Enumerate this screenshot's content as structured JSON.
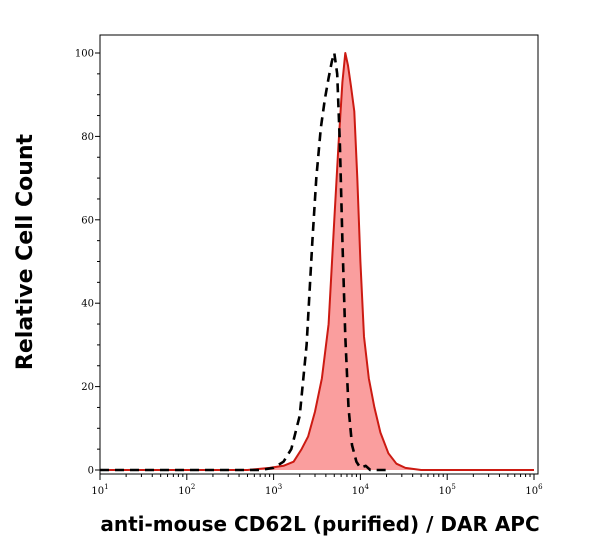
{
  "chart_data": {
    "type": "area",
    "title": "",
    "xlabel": "anti-mouse CD62L (purified) / DAR APC",
    "ylabel": "Relative Cell Count",
    "x_scale": "log",
    "xlim": [
      10,
      1000000
    ],
    "ylim": [
      0,
      100
    ],
    "x_ticks": [
      {
        "base": "10",
        "exp": "1",
        "value": 10
      },
      {
        "base": "10",
        "exp": "2",
        "value": 100
      },
      {
        "base": "10",
        "exp": "3",
        "value": 1000
      },
      {
        "base": "10",
        "exp": "4",
        "value": 10000
      },
      {
        "base": "10",
        "exp": "5",
        "value": 100000
      },
      {
        "base": "10",
        "exp": "6",
        "value": 1000000
      }
    ],
    "y_ticks": [
      "0",
      "20",
      "40",
      "60",
      "80",
      "100"
    ],
    "grid": false,
    "series": [
      {
        "style": "filled",
        "color": "#cc1a12",
        "fill": "#fa9e9e",
        "x": [
          10,
          500,
          900,
          1300,
          1700,
          2100,
          2500,
          3000,
          3600,
          4300,
          5000,
          5600,
          6200,
          6700,
          7200,
          7800,
          8500,
          9200,
          10000,
          11000,
          12500,
          14500,
          17000,
          21000,
          26000,
          33000,
          50000,
          1000000
        ],
        "y": [
          0,
          0,
          0.5,
          1,
          2,
          5,
          8,
          14,
          22,
          35,
          60,
          78,
          93,
          100,
          97,
          92,
          86,
          70,
          50,
          32,
          22,
          15,
          9,
          4,
          1.5,
          0.5,
          0,
          0
        ]
      },
      {
        "style": "dashed",
        "color": "#000000",
        "x": [
          10,
          700,
          1000,
          1300,
          1600,
          2000,
          2400,
          2800,
          3100,
          3500,
          3900,
          4300,
          4700,
          5000,
          5400,
          5800,
          6200,
          6700,
          7300,
          8000,
          9000,
          10000,
          11500,
          13000,
          15000,
          20000
        ],
        "y": [
          0,
          0,
          0.5,
          2,
          5,
          13,
          30,
          55,
          70,
          82,
          89,
          94,
          98,
          100,
          95,
          78,
          55,
          32,
          15,
          6,
          2,
          0.5,
          1,
          0,
          0,
          0
        ]
      }
    ]
  }
}
